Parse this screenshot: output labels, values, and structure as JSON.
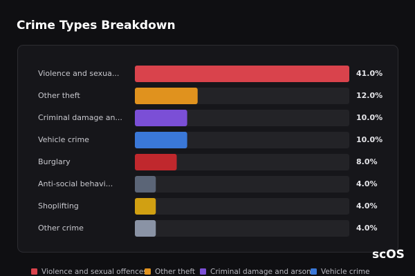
{
  "chart_data": {
    "type": "bar",
    "orientation": "horizontal",
    "title": "Crime Types Breakdown",
    "categories": [
      "Violence and sexua...",
      "Other theft",
      "Criminal damage an...",
      "Vehicle crime",
      "Burglary",
      "Anti-social behavi...",
      "Shoplifting",
      "Other crime"
    ],
    "values": [
      41.0,
      12.0,
      10.0,
      10.0,
      8.0,
      4.0,
      4.0,
      4.0
    ],
    "value_labels": [
      "41.0%",
      "12.0%",
      "10.0%",
      "10.0%",
      "8.0%",
      "4.0%",
      "4.0%",
      "4.0%"
    ],
    "colors": [
      "#d9434c",
      "#e0921e",
      "#7b4fd6",
      "#3a78d8",
      "#c0282d",
      "#5b6577",
      "#d1a012",
      "#8a93a5"
    ],
    "legend": [
      "Violence and sexual offences",
      "Other theft",
      "Criminal damage and arson",
      "Vehicle crime"
    ]
  },
  "watermark": "scOS"
}
